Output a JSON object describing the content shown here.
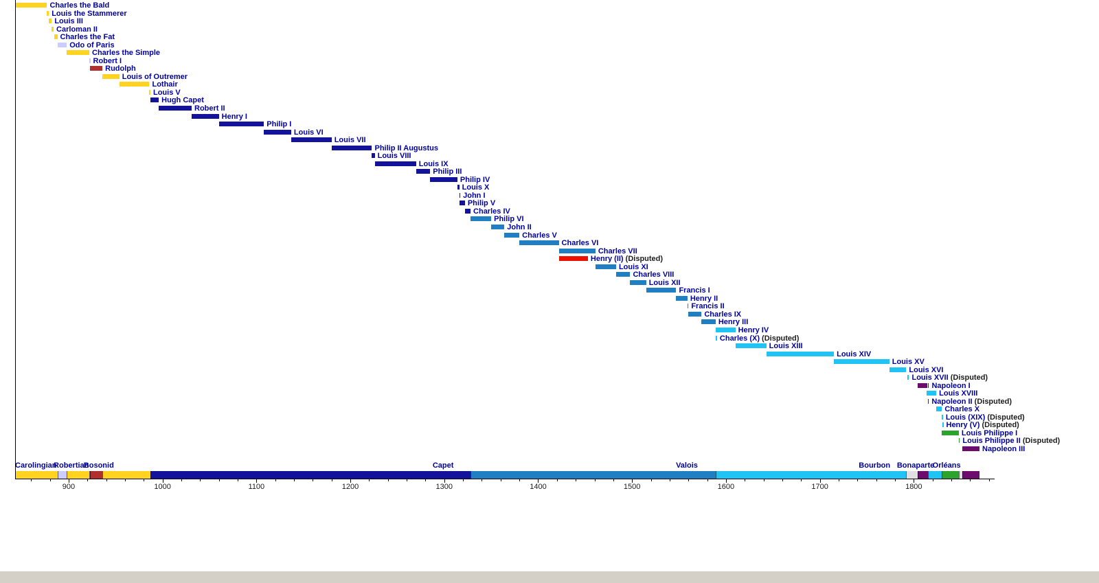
{
  "page": {
    "background": "#FFFFFF",
    "bottom_strip_color": "#D4D0C8"
  },
  "chart_data": {
    "type": "bar",
    "subtype": "gantt-timeline-of-reigns",
    "title": "",
    "xlabel": "",
    "ylabel": "",
    "xlim": [
      843,
      1886
    ],
    "grid": false,
    "x_major_ticks": [
      900,
      1000,
      1100,
      1200,
      1300,
      1400,
      1500,
      1600,
      1700,
      1800
    ],
    "x_minor_tick_interval": 20,
    "colors": {
      "carolingian": "#FFD320",
      "robertian": "#CCCCFF",
      "bosonid": "#B03030",
      "capet": "#12129A",
      "valois": "#1F7FC2",
      "bourbon": "#20C4F4",
      "bonaparte": "#6E0C6E",
      "orleans": "#2CA32C",
      "disputed_red": "#EE1100",
      "republic_gap": "#E0E0E0",
      "label_navy": "#0000A1",
      "disputed_text": "#1D1D1D",
      "axis": "#000000"
    },
    "disputed_suffix": " (Disputed)",
    "monarchs": [
      {
        "label": "Charles the Bald",
        "color": "carolingian",
        "disputed": false,
        "bars": [
          [
            843,
            877
          ]
        ]
      },
      {
        "label": "Louis the Stammerer",
        "color": "carolingian",
        "disputed": false,
        "bars": [
          [
            877,
            879
          ]
        ]
      },
      {
        "label": "Louis III",
        "color": "carolingian",
        "disputed": false,
        "bars": [
          [
            879,
            882
          ]
        ]
      },
      {
        "label": "Carloman II",
        "color": "carolingian",
        "disputed": false,
        "bars": [
          [
            882,
            884
          ]
        ]
      },
      {
        "label": "Charles the Fat",
        "color": "carolingian",
        "disputed": false,
        "bars": [
          [
            885,
            888
          ]
        ]
      },
      {
        "label": "Odo of Paris",
        "color": "robertian",
        "disputed": false,
        "bars": [
          [
            888,
            898
          ]
        ]
      },
      {
        "label": "Charles the Simple",
        "color": "carolingian",
        "disputed": false,
        "bars": [
          [
            898,
            922
          ]
        ]
      },
      {
        "label": "Robert I",
        "color": "robertian",
        "disputed": false,
        "bars": [
          [
            922,
            923
          ]
        ]
      },
      {
        "label": "Rudolph",
        "color": "bosonid",
        "disputed": false,
        "bars": [
          [
            923,
            936
          ]
        ]
      },
      {
        "label": "Louis of Outremer",
        "color": "carolingian",
        "disputed": false,
        "bars": [
          [
            936,
            954
          ]
        ]
      },
      {
        "label": "Lothair",
        "color": "carolingian",
        "disputed": false,
        "bars": [
          [
            954,
            986
          ]
        ]
      },
      {
        "label": "Louis V",
        "color": "carolingian",
        "disputed": false,
        "bars": [
          [
            986,
            987
          ]
        ]
      },
      {
        "label": "Hugh Capet",
        "color": "capet",
        "disputed": false,
        "bars": [
          [
            987,
            996
          ]
        ]
      },
      {
        "label": "Robert II",
        "color": "capet",
        "disputed": false,
        "bars": [
          [
            996,
            1031
          ]
        ]
      },
      {
        "label": "Henry I",
        "color": "capet",
        "disputed": false,
        "bars": [
          [
            1031,
            1060
          ]
        ]
      },
      {
        "label": "Philip I",
        "color": "capet",
        "disputed": false,
        "bars": [
          [
            1060,
            1108
          ]
        ]
      },
      {
        "label": "Louis VI",
        "color": "capet",
        "disputed": false,
        "bars": [
          [
            1108,
            1137
          ]
        ]
      },
      {
        "label": "Louis VII",
        "color": "capet",
        "disputed": false,
        "bars": [
          [
            1137,
            1180
          ]
        ]
      },
      {
        "label": "Philip II Augustus",
        "color": "capet",
        "disputed": false,
        "bars": [
          [
            1180,
            1223
          ]
        ]
      },
      {
        "label": "Louis VIII",
        "color": "capet",
        "disputed": false,
        "bars": [
          [
            1223,
            1226
          ]
        ]
      },
      {
        "label": "Louis IX",
        "color": "capet",
        "disputed": false,
        "bars": [
          [
            1226,
            1270
          ]
        ]
      },
      {
        "label": "Philip III",
        "color": "capet",
        "disputed": false,
        "bars": [
          [
            1270,
            1285
          ]
        ]
      },
      {
        "label": "Philip IV",
        "color": "capet",
        "disputed": false,
        "bars": [
          [
            1285,
            1314
          ]
        ]
      },
      {
        "label": "Louis X",
        "color": "capet",
        "disputed": false,
        "bars": [
          [
            1314,
            1316
          ]
        ]
      },
      {
        "label": "John I",
        "color": "capet",
        "disputed": false,
        "bars": [
          [
            1316,
            1316.5
          ]
        ]
      },
      {
        "label": "Philip V",
        "color": "capet",
        "disputed": false,
        "bars": [
          [
            1316,
            1322
          ]
        ]
      },
      {
        "label": "Charles IV",
        "color": "capet",
        "disputed": false,
        "bars": [
          [
            1322,
            1328
          ]
        ]
      },
      {
        "label": "Philip VI",
        "color": "valois",
        "disputed": false,
        "bars": [
          [
            1328,
            1350
          ]
        ]
      },
      {
        "label": "John II",
        "color": "valois",
        "disputed": false,
        "bars": [
          [
            1350,
            1364
          ]
        ]
      },
      {
        "label": "Charles V",
        "color": "valois",
        "disputed": false,
        "bars": [
          [
            1364,
            1380
          ]
        ]
      },
      {
        "label": "Charles VI",
        "color": "valois",
        "disputed": false,
        "bars": [
          [
            1380,
            1422
          ]
        ]
      },
      {
        "label": "Charles VII",
        "color": "valois",
        "disputed": false,
        "bars": [
          [
            1422,
            1461
          ]
        ]
      },
      {
        "label": "Henry (II)",
        "color": "disputed_red",
        "disputed": true,
        "bars": [
          [
            1422,
            1453
          ]
        ]
      },
      {
        "label": "Louis XI",
        "color": "valois",
        "disputed": false,
        "bars": [
          [
            1461,
            1483
          ]
        ]
      },
      {
        "label": "Charles VIII",
        "color": "valois",
        "disputed": false,
        "bars": [
          [
            1483,
            1498
          ]
        ]
      },
      {
        "label": "Louis XII",
        "color": "valois",
        "disputed": false,
        "bars": [
          [
            1498,
            1515
          ]
        ]
      },
      {
        "label": "Francis I",
        "color": "valois",
        "disputed": false,
        "bars": [
          [
            1515,
            1547
          ]
        ]
      },
      {
        "label": "Henry II",
        "color": "valois",
        "disputed": false,
        "bars": [
          [
            1547,
            1559
          ]
        ]
      },
      {
        "label": "Francis II",
        "color": "valois",
        "disputed": false,
        "bars": [
          [
            1559,
            1560
          ]
        ]
      },
      {
        "label": "Charles IX",
        "color": "valois",
        "disputed": false,
        "bars": [
          [
            1560,
            1574
          ]
        ]
      },
      {
        "label": "Henry III",
        "color": "valois",
        "disputed": false,
        "bars": [
          [
            1574,
            1589
          ]
        ]
      },
      {
        "label": "Henry IV",
        "color": "bourbon",
        "disputed": false,
        "bars": [
          [
            1589,
            1610
          ]
        ]
      },
      {
        "label": "Charles (X)",
        "color": "bourbon",
        "disputed": true,
        "bars": [
          [
            1589,
            1590.5
          ]
        ]
      },
      {
        "label": "Louis XIII",
        "color": "bourbon",
        "disputed": false,
        "bars": [
          [
            1610,
            1643
          ]
        ]
      },
      {
        "label": "Louis XIV",
        "color": "bourbon",
        "disputed": false,
        "bars": [
          [
            1643,
            1715
          ]
        ]
      },
      {
        "label": "Louis XV",
        "color": "bourbon",
        "disputed": false,
        "bars": [
          [
            1715,
            1774
          ]
        ]
      },
      {
        "label": "Louis XVI",
        "color": "bourbon",
        "disputed": false,
        "bars": [
          [
            1774,
            1792
          ]
        ]
      },
      {
        "label": "Louis XVII",
        "color": "bourbon",
        "disputed": true,
        "bars": [
          [
            1793,
            1795
          ]
        ]
      },
      {
        "label": "Napoleon I",
        "color": "bonaparte",
        "disputed": false,
        "bars": [
          [
            1804,
            1814.3
          ],
          [
            1815.1,
            1815.7
          ]
        ]
      },
      {
        "label": "Louis XVIII",
        "color": "bourbon",
        "disputed": false,
        "bars": [
          [
            1814,
            1824
          ]
        ]
      },
      {
        "label": "Napoleon II",
        "color": "bonaparte",
        "disputed": true,
        "bars": [
          [
            1815,
            1815.6
          ]
        ]
      },
      {
        "label": "Charles X",
        "color": "bourbon",
        "disputed": false,
        "bars": [
          [
            1824,
            1830
          ]
        ]
      },
      {
        "label": "Louis (XIX)",
        "color": "bourbon",
        "disputed": true,
        "bars": [
          [
            1830,
            1830.5
          ]
        ]
      },
      {
        "label": "Henry (V)",
        "color": "bourbon",
        "disputed": true,
        "bars": [
          [
            1830.5,
            1831.3
          ]
        ]
      },
      {
        "label": "Louis Philippe I",
        "color": "orleans",
        "disputed": false,
        "bars": [
          [
            1830,
            1848
          ]
        ]
      },
      {
        "label": "Louis Philippe II",
        "color": "orleans",
        "disputed": true,
        "bars": [
          [
            1848,
            1848.5
          ]
        ]
      },
      {
        "label": "Napoleon III",
        "color": "bonaparte",
        "disputed": false,
        "bars": [
          [
            1852,
            1870
          ]
        ]
      }
    ],
    "dynasty_band": [
      {
        "color": "carolingian",
        "start": 843,
        "end": 888
      },
      {
        "color": "robertian",
        "start": 888,
        "end": 898
      },
      {
        "color": "carolingian",
        "start": 898,
        "end": 922
      },
      {
        "color": "robertian",
        "start": 922,
        "end": 923
      },
      {
        "color": "bosonid",
        "start": 923,
        "end": 936
      },
      {
        "color": "carolingian",
        "start": 936,
        "end": 987
      },
      {
        "color": "capet",
        "start": 987,
        "end": 1328
      },
      {
        "color": "valois",
        "start": 1328,
        "end": 1589
      },
      {
        "color": "bourbon",
        "start": 1589,
        "end": 1792
      },
      {
        "color": "republic_gap",
        "start": 1792,
        "end": 1804
      },
      {
        "color": "bonaparte",
        "start": 1804,
        "end": 1815
      },
      {
        "color": "bourbon",
        "start": 1815,
        "end": 1830
      },
      {
        "color": "orleans",
        "start": 1830,
        "end": 1848
      },
      {
        "color": "republic_gap",
        "start": 1848,
        "end": 1852
      },
      {
        "color": "bonaparte",
        "start": 1852,
        "end": 1870
      }
    ],
    "dynasty_labels": [
      {
        "text": "Carolingian",
        "align": "left",
        "anchor_year": 843
      },
      {
        "text": "Robertian",
        "align": "left",
        "anchor_year": 884
      },
      {
        "text": "Bosonid",
        "align": "left",
        "anchor_year": 916
      },
      {
        "text": "Capet",
        "align": "right",
        "anchor_year": 1310
      },
      {
        "text": "Valois",
        "align": "right",
        "anchor_year": 1570
      },
      {
        "text": "Bourbon",
        "align": "right",
        "anchor_year": 1775
      },
      {
        "text": "Bonaparte",
        "align": "center",
        "anchor_year": 1802
      },
      {
        "text": "Orléans",
        "align": "center",
        "anchor_year": 1835
      }
    ]
  }
}
